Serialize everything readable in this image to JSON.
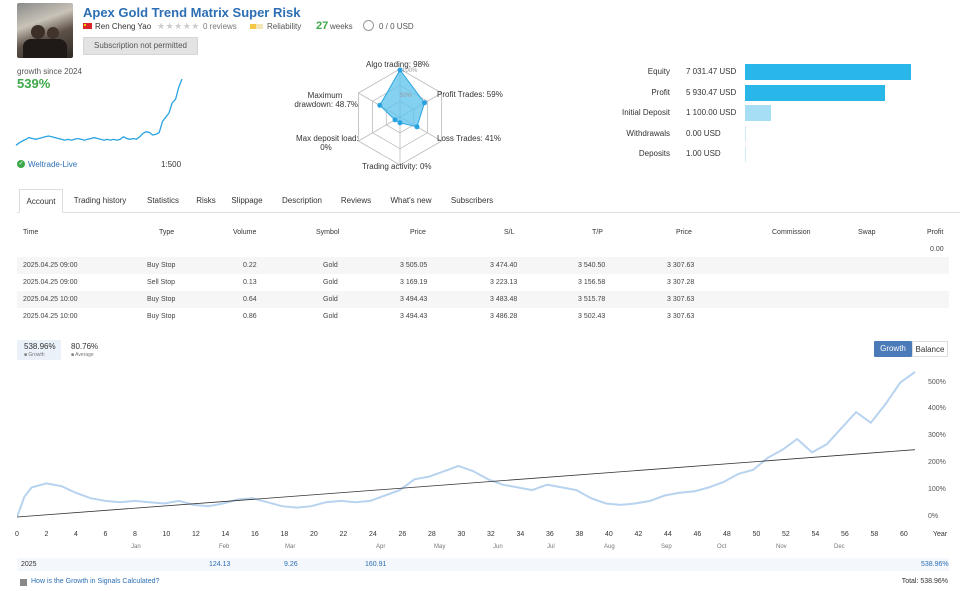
{
  "header": {
    "title": "Apex Gold Trend Matrix Super Risk",
    "author": "Ren Cheng Yao",
    "stars": "★★★★★",
    "reviews": "0 reviews",
    "reliability_label": "Reliability",
    "weeks_value": "27",
    "weeks_label": "weeks",
    "subscribers_usd": "0 / 0 USD",
    "subscription_button": "Subscription not permitted"
  },
  "summary": {
    "growth_since": "growth since 2024",
    "growth_pct": "539%",
    "broker": "Weltrade-Live",
    "leverage": "1:500",
    "sparkline": [
      2,
      5,
      7,
      9,
      11,
      10,
      9,
      10,
      11,
      12,
      13,
      12,
      11,
      10,
      9,
      8,
      9,
      8,
      9,
      10,
      9,
      8,
      9,
      10,
      11,
      10,
      9,
      8,
      9,
      8,
      9,
      8,
      9,
      12,
      10,
      9,
      10,
      9,
      12,
      16,
      18,
      17,
      14,
      15,
      17,
      30,
      35,
      40,
      52,
      56,
      70,
      80
    ]
  },
  "radar": {
    "algo_trading": "Algo trading: 98%",
    "profit_trades": "Profit Trades: 59%",
    "loss_trades": "Loss Trades: 41%",
    "trading_activity": "Trading activity: 0%",
    "max_deposit_load_line1": "Max deposit load:",
    "max_deposit_load_line2": "0%",
    "max_drawdown_line1": "Maximum",
    "max_drawdown_line2": "drawdown: 48.7%",
    "ring_outer": "100%",
    "ring_inner": "50%",
    "values": [
      98,
      59,
      41,
      0,
      0,
      48.7
    ]
  },
  "stats": [
    {
      "label": "Equity",
      "value": "7 031.47 USD",
      "amount": 7031.47
    },
    {
      "label": "Profit",
      "value": "5 930.47 USD",
      "amount": 5930.47
    },
    {
      "label": "Initial Deposit",
      "value": "1 100.00 USD",
      "amount": 1100.0
    },
    {
      "label": "Withdrawals",
      "value": "0.00 USD",
      "amount": 0
    },
    {
      "label": "Deposits",
      "value": "1.00 USD",
      "amount": 1.0
    }
  ],
  "colors": {
    "bar_main": "#29b7ea",
    "bar_light": "#a6def5",
    "accent_green": "#3da848",
    "link": "#2c6fb4",
    "line_chart": "#b8d3ef"
  },
  "tabs": [
    "Account",
    "Trading history",
    "Statistics",
    "Risks",
    "Slippage",
    "Description",
    "Reviews",
    "What's new",
    "Subscribers"
  ],
  "table": {
    "headers": [
      "Time",
      "Type",
      "Volume",
      "Symbol",
      "Price",
      "S/L",
      "T/P",
      "Price",
      "Commission",
      "Swap",
      "Profit"
    ],
    "profit_total": "0.00",
    "rows": [
      [
        "2025.04.25 09:00",
        "Buy Stop",
        "0.22",
        "Gold",
        "3 505.05",
        "3 474.40",
        "3 540.50",
        "3 307.63"
      ],
      [
        "2025.04.25 09:00",
        "Sell Stop",
        "0.13",
        "Gold",
        "3 169.19",
        "3 223.13",
        "3 156.58",
        "3 307.28"
      ],
      [
        "2025.04.25 10:00",
        "Buy Stop",
        "0.64",
        "Gold",
        "3 494.43",
        "3 483.48",
        "3 515.78",
        "3 307.63"
      ],
      [
        "2025.04.25 10:00",
        "Buy Stop",
        "0.86",
        "Gold",
        "3 494.43",
        "3 486.28",
        "3 502.43",
        "3 307.63"
      ]
    ]
  },
  "chart_legend": {
    "growth_value": "538.96%",
    "growth_label": "Growth",
    "average_value": "80.76%",
    "average_label": "Average"
  },
  "chart_buttons": {
    "growth": "Growth",
    "balance": "Balance"
  },
  "chart_data": {
    "type": "line",
    "x_ticks": [
      "0",
      "2",
      "4",
      "6",
      "8",
      "10",
      "12",
      "14",
      "16",
      "18",
      "20",
      "22",
      "24",
      "26",
      "28",
      "30",
      "32",
      "34",
      "36",
      "38",
      "40",
      "42",
      "44",
      "46",
      "48",
      "50",
      "52",
      "54",
      "56",
      "58",
      "60"
    ],
    "x_ticks_extra": "Year",
    "months": [
      "Jan",
      "Feb",
      "Mar",
      "Apr",
      "May",
      "Jun",
      "Jul",
      "Aug",
      "Sep",
      "Oct",
      "Nov",
      "Dec"
    ],
    "y_ticks": [
      "500%",
      "400%",
      "300%",
      "200%",
      "100%",
      "0%"
    ],
    "ylim": [
      0,
      550
    ],
    "xlim": [
      0,
      61
    ],
    "series": [
      {
        "values": [
          [
            0,
            0
          ],
          [
            0.5,
            75
          ],
          [
            1,
            110
          ],
          [
            2,
            125
          ],
          [
            3,
            115
          ],
          [
            4,
            90
          ],
          [
            5,
            70
          ],
          [
            6,
            60
          ],
          [
            7,
            55
          ],
          [
            8,
            60
          ],
          [
            9,
            55
          ],
          [
            10,
            50
          ],
          [
            11,
            60
          ],
          [
            12,
            45
          ],
          [
            13,
            40
          ],
          [
            14,
            50
          ],
          [
            15,
            65
          ],
          [
            16,
            70
          ],
          [
            17,
            55
          ],
          [
            18,
            40
          ],
          [
            19,
            35
          ],
          [
            20,
            40
          ],
          [
            21,
            55
          ],
          [
            22,
            60
          ],
          [
            23,
            55
          ],
          [
            24,
            60
          ],
          [
            25,
            80
          ],
          [
            26,
            100
          ],
          [
            27,
            140
          ],
          [
            28,
            150
          ],
          [
            29,
            170
          ],
          [
            30,
            190
          ],
          [
            31,
            170
          ],
          [
            32,
            140
          ],
          [
            33,
            120
          ],
          [
            34,
            110
          ],
          [
            35,
            100
          ],
          [
            36,
            120
          ],
          [
            37,
            110
          ],
          [
            38,
            100
          ],
          [
            39,
            70
          ],
          [
            40,
            50
          ],
          [
            41,
            45
          ],
          [
            42,
            50
          ],
          [
            43,
            60
          ],
          [
            44,
            80
          ],
          [
            45,
            90
          ],
          [
            46,
            95
          ],
          [
            47,
            110
          ],
          [
            48,
            130
          ],
          [
            49,
            160
          ],
          [
            50,
            175
          ],
          [
            51,
            220
          ],
          [
            52,
            250
          ],
          [
            53,
            290
          ],
          [
            54,
            240
          ],
          [
            55,
            270
          ],
          [
            56,
            330
          ],
          [
            57,
            390
          ],
          [
            58,
            350
          ],
          [
            59,
            420
          ],
          [
            60,
            500
          ],
          [
            61,
            539
          ]
        ]
      },
      {
        "values": [
          [
            0,
            0
          ],
          [
            61,
            250
          ]
        ]
      }
    ]
  },
  "year_row": {
    "year": "2025",
    "v1": "124.13",
    "v2": "9.26",
    "v3": "160.91",
    "total_right": "538.96%"
  },
  "footer": {
    "help": "How is the Growth in Signals Calculated?",
    "total": "Total: 538.96%"
  }
}
